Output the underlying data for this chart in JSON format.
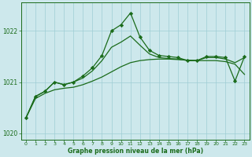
{
  "x": [
    0,
    1,
    2,
    3,
    4,
    5,
    6,
    7,
    8,
    9,
    10,
    11,
    12,
    13,
    14,
    15,
    16,
    17,
    18,
    19,
    20,
    21,
    22,
    23
  ],
  "line_jagged": [
    1020.3,
    1020.72,
    1020.82,
    1021.0,
    1020.95,
    1021.0,
    1021.12,
    1021.28,
    1021.52,
    1022.0,
    1022.12,
    1022.35,
    1021.88,
    1021.62,
    1021.52,
    1021.5,
    1021.48,
    1021.42,
    1021.42,
    1021.5,
    1021.5,
    1021.48,
    1021.02,
    1021.5
  ],
  "line_upper": [
    1020.3,
    1020.72,
    1020.82,
    1021.0,
    1020.95,
    1021.0,
    1021.08,
    1021.22,
    1021.42,
    1021.68,
    1021.78,
    1021.9,
    1021.72,
    1021.55,
    1021.48,
    1021.46,
    1021.45,
    1021.42,
    1021.42,
    1021.48,
    1021.48,
    1021.45,
    1021.38,
    1021.48
  ],
  "line_lower": [
    1020.3,
    1020.68,
    1020.78,
    1020.85,
    1020.88,
    1020.9,
    1020.95,
    1021.02,
    1021.1,
    1021.2,
    1021.3,
    1021.38,
    1021.42,
    1021.44,
    1021.45,
    1021.45,
    1021.44,
    1021.43,
    1021.42,
    1021.42,
    1021.42,
    1021.4,
    1021.35,
    1021.15
  ],
  "ylim": [
    1019.88,
    1022.55
  ],
  "yticks": [
    1020,
    1021,
    1022
  ],
  "xticks": [
    0,
    1,
    2,
    3,
    4,
    5,
    6,
    7,
    8,
    9,
    10,
    11,
    12,
    13,
    14,
    15,
    16,
    17,
    18,
    19,
    20,
    21,
    22,
    23
  ],
  "xlabel": "Graphe pression niveau de la mer (hPa)",
  "bg_color": "#cde8ec",
  "grid_color": "#9ecdd4",
  "line_color": "#1a6b1a",
  "marker": "D",
  "figsize": [
    3.2,
    2.0
  ],
  "dpi": 100
}
